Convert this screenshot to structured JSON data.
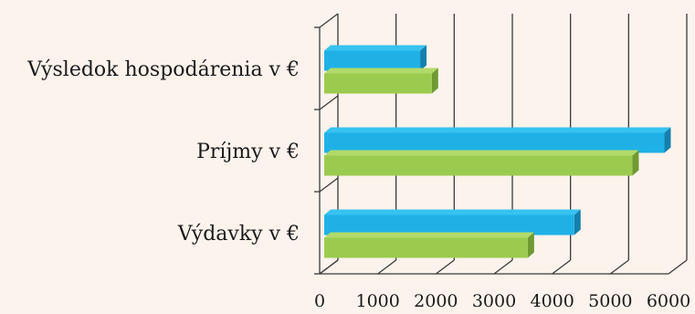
{
  "colors": {
    "background": "#fcf3ec",
    "series_blue": "#1fb1e6",
    "series_blue_top": "#37c2f0",
    "series_blue_side": "#1480ad",
    "series_green": "#9bcb4e",
    "series_green_top": "#b2da6a",
    "series_green_side": "#6f9a32",
    "axis": "#3a3a3a"
  },
  "chart_data": {
    "type": "bar",
    "orientation": "horizontal",
    "style": "3d-clustered",
    "categories": [
      "Výdavky v €",
      "Príjmy  v €",
      "Výsledok hospodárenia  v €"
    ],
    "series": [
      {
        "color": "blue",
        "values": [
          4300,
          5850,
          1650
        ]
      },
      {
        "color": "green",
        "values": [
          3500,
          5300,
          1850
        ]
      }
    ],
    "xlim": [
      0,
      6000
    ],
    "xticks": [
      "0",
      "1000",
      "2000",
      "3000",
      "4000",
      "5000",
      "6000"
    ],
    "grid": true,
    "legend": "none"
  }
}
